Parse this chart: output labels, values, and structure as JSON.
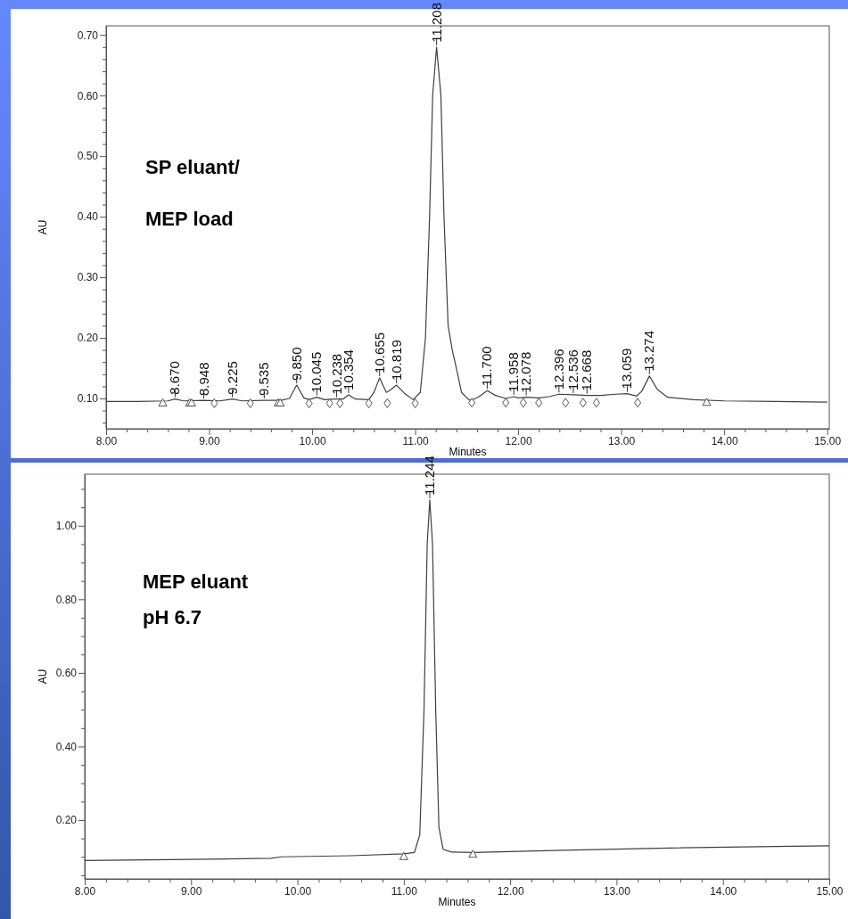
{
  "chart_data": [
    {
      "type": "line",
      "xlabel": "Minutes",
      "ylabel": "AU",
      "xlim": [
        8,
        15.02
      ],
      "ylim": [
        0.05,
        0.715
      ],
      "xticks": [
        {
          "value": 8,
          "label": "8.00"
        },
        {
          "value": 8.2,
          "label": null
        },
        {
          "value": 8.4,
          "label": null
        },
        {
          "value": 8.6,
          "label": null
        },
        {
          "value": 8.8,
          "label": null
        },
        {
          "value": 9,
          "label": "9.00"
        },
        {
          "value": 9.2,
          "label": null
        },
        {
          "value": 9.4,
          "label": null
        },
        {
          "value": 9.6,
          "label": null
        },
        {
          "value": 9.8,
          "label": null
        },
        {
          "value": 10,
          "label": "10.00"
        },
        {
          "value": 10.2,
          "label": null
        },
        {
          "value": 10.4,
          "label": null
        },
        {
          "value": 10.6,
          "label": null
        },
        {
          "value": 10.8,
          "label": null
        },
        {
          "value": 11,
          "label": "11.00"
        },
        {
          "value": 11.2,
          "label": null
        },
        {
          "value": 11.4,
          "label": null
        },
        {
          "value": 11.6,
          "label": null
        },
        {
          "value": 11.8,
          "label": null
        },
        {
          "value": 12,
          "label": "12.00"
        },
        {
          "value": 12.2,
          "label": null
        },
        {
          "value": 12.4,
          "label": null
        },
        {
          "value": 12.6,
          "label": null
        },
        {
          "value": 12.8,
          "label": null
        },
        {
          "value": 13,
          "label": "13.00"
        },
        {
          "value": 13.2,
          "label": null
        },
        {
          "value": 13.4,
          "label": null
        },
        {
          "value": 13.6,
          "label": null
        },
        {
          "value": 13.8,
          "label": null
        },
        {
          "value": 14,
          "label": "14.00"
        },
        {
          "value": 14.2,
          "label": null
        },
        {
          "value": 14.4,
          "label": null
        },
        {
          "value": 14.6,
          "label": null
        },
        {
          "value": 14.8,
          "label": null
        },
        {
          "value": 15,
          "label": "15.00"
        }
      ],
      "yticks": [
        {
          "value": 0.06,
          "label": null
        },
        {
          "value": 0.08,
          "label": null
        },
        {
          "value": 0.1,
          "label": "0.10"
        },
        {
          "value": 0.12,
          "label": null
        },
        {
          "value": 0.14,
          "label": null
        },
        {
          "value": 0.16,
          "label": null
        },
        {
          "value": 0.18,
          "label": null
        },
        {
          "value": 0.2,
          "label": "0.20"
        },
        {
          "value": 0.22,
          "label": null
        },
        {
          "value": 0.24,
          "label": null
        },
        {
          "value": 0.26,
          "label": null
        },
        {
          "value": 0.28,
          "label": null
        },
        {
          "value": 0.3,
          "label": "0.30"
        },
        {
          "value": 0.32,
          "label": null
        },
        {
          "value": 0.34,
          "label": null
        },
        {
          "value": 0.36,
          "label": null
        },
        {
          "value": 0.38,
          "label": null
        },
        {
          "value": 0.4,
          "label": "0.40"
        },
        {
          "value": 0.42,
          "label": null
        },
        {
          "value": 0.44,
          "label": null
        },
        {
          "value": 0.46,
          "label": null
        },
        {
          "value": 0.48,
          "label": null
        },
        {
          "value": 0.5,
          "label": "0.50"
        },
        {
          "value": 0.52,
          "label": null
        },
        {
          "value": 0.54,
          "label": null
        },
        {
          "value": 0.56,
          "label": null
        },
        {
          "value": 0.58,
          "label": null
        },
        {
          "value": 0.6,
          "label": "0.60"
        },
        {
          "value": 0.62,
          "label": null
        },
        {
          "value": 0.64,
          "label": null
        },
        {
          "value": 0.66,
          "label": null
        },
        {
          "value": 0.68,
          "label": null
        },
        {
          "value": 0.7,
          "label": "0.70"
        }
      ],
      "series": [
        {
          "type": "line",
          "color": "#404040",
          "marker": "none",
          "x": [
            8,
            8.3,
            8.6,
            8.67,
            8.75,
            8.95,
            9.1,
            9.225,
            9.32,
            9.535,
            9.7,
            9.78,
            9.85,
            9.92,
            9.97,
            10.045,
            10.12,
            10.238,
            10.3,
            10.354,
            10.42,
            10.55,
            10.6,
            10.655,
            10.72,
            10.76,
            10.819,
            10.9,
            10.98,
            11.05,
            11.1,
            11.14,
            11.17,
            11.208,
            11.25,
            11.28,
            11.32,
            11.36,
            11.4,
            11.45,
            11.52,
            11.55,
            11.62,
            11.7,
            11.78,
            11.88,
            11.958,
            12,
            12.078,
            12.2,
            12.3,
            12.396,
            12.536,
            12.668,
            12.8,
            12.95,
            13.059,
            13.15,
            13.2,
            13.274,
            13.35,
            13.45,
            13.7,
            14,
            14.5,
            15
          ],
          "values": [
            0.095,
            0.095,
            0.096,
            0.099,
            0.096,
            0.097,
            0.096,
            0.099,
            0.096,
            0.097,
            0.097,
            0.1,
            0.122,
            0.101,
            0.098,
            0.102,
            0.098,
            0.099,
            0.099,
            0.106,
            0.099,
            0.098,
            0.11,
            0.134,
            0.11,
            0.114,
            0.122,
            0.108,
            0.098,
            0.11,
            0.2,
            0.4,
            0.6,
            0.68,
            0.6,
            0.4,
            0.22,
            0.18,
            0.15,
            0.11,
            0.098,
            0.097,
            0.103,
            0.113,
            0.105,
            0.1,
            0.103,
            0.101,
            0.102,
            0.101,
            0.103,
            0.107,
            0.106,
            0.105,
            0.105,
            0.107,
            0.108,
            0.104,
            0.112,
            0.137,
            0.115,
            0.102,
            0.098,
            0.096,
            0.095,
            0.094
          ]
        },
        {
          "type": "scatter",
          "color": "#404040",
          "marker": "triangle",
          "x": [
            8.55,
            8.81,
            8.83,
            9.67,
            9.69,
            13.83
          ],
          "values": [
            0.092,
            0.092,
            0.092,
            0.092,
            0.092,
            0.093
          ]
        },
        {
          "type": "scatter",
          "color": "#404040",
          "marker": "diamond",
          "x": [
            9.05,
            9.4,
            9.97,
            10.17,
            10.27,
            10.55,
            10.73,
            11,
            11.55,
            11.88,
            12.05,
            12.2,
            12.46,
            12.63,
            12.76,
            13.16
          ],
          "values": [
            0.092,
            0.092,
            0.092,
            0.092,
            0.092,
            0.092,
            0.092,
            0.092,
            0.093,
            0.093,
            0.093,
            0.093,
            0.093,
            0.093,
            0.093,
            0.093
          ]
        }
      ],
      "annotations": [
        "SP eluant/",
        "MEP load",
        {
          "text": "8.670",
          "x": 8.67,
          "y": 0.099
        },
        {
          "text": "8.948",
          "x": 8.948,
          "y": 0.097
        },
        {
          "text": "9.225",
          "x": 9.225,
          "y": 0.099
        },
        {
          "text": "9.535",
          "x": 9.535,
          "y": 0.097
        },
        {
          "text": "9.850",
          "x": 9.85,
          "y": 0.122
        },
        {
          "text": "10.045",
          "x": 10.045,
          "y": 0.102
        },
        {
          "text": "10.238",
          "x": 10.238,
          "y": 0.099
        },
        {
          "text": "10.354",
          "x": 10.354,
          "y": 0.106
        },
        {
          "text": "10.655",
          "x": 10.655,
          "y": 0.134
        },
        {
          "text": "10.819",
          "x": 10.819,
          "y": 0.122
        },
        {
          "text": "11.208",
          "x": 11.208,
          "y": 0.68
        },
        {
          "text": "11.700",
          "x": 11.7,
          "y": 0.113
        },
        {
          "text": "11.958",
          "x": 11.958,
          "y": 0.103
        },
        {
          "text": "12.078",
          "x": 12.078,
          "y": 0.102
        },
        {
          "text": "12.396",
          "x": 12.396,
          "y": 0.107
        },
        {
          "text": "12.536",
          "x": 12.536,
          "y": 0.106
        },
        {
          "text": "12.668",
          "x": 12.668,
          "y": 0.105
        },
        {
          "text": "13.059",
          "x": 13.059,
          "y": 0.108
        },
        {
          "text": "13.274",
          "x": 13.274,
          "y": 0.137
        }
      ]
    },
    {
      "type": "line",
      "xlabel": "Minutes",
      "ylabel": "AU",
      "xlim": [
        8,
        15
      ],
      "ylim": [
        0.04,
        1.14
      ],
      "xticks": [
        {
          "value": 8,
          "label": "8.00"
        },
        {
          "value": 8.2,
          "label": null
        },
        {
          "value": 8.4,
          "label": null
        },
        {
          "value": 8.6,
          "label": null
        },
        {
          "value": 8.8,
          "label": null
        },
        {
          "value": 9,
          "label": "9.00"
        },
        {
          "value": 9.2,
          "label": null
        },
        {
          "value": 9.4,
          "label": null
        },
        {
          "value": 9.6,
          "label": null
        },
        {
          "value": 9.8,
          "label": null
        },
        {
          "value": 10,
          "label": "10.00"
        },
        {
          "value": 10.2,
          "label": null
        },
        {
          "value": 10.4,
          "label": null
        },
        {
          "value": 10.6,
          "label": null
        },
        {
          "value": 10.8,
          "label": null
        },
        {
          "value": 11,
          "label": "11.00"
        },
        {
          "value": 11.2,
          "label": null
        },
        {
          "value": 11.4,
          "label": null
        },
        {
          "value": 11.6,
          "label": null
        },
        {
          "value": 11.8,
          "label": null
        },
        {
          "value": 12,
          "label": "12.00"
        },
        {
          "value": 12.2,
          "label": null
        },
        {
          "value": 12.4,
          "label": null
        },
        {
          "value": 12.6,
          "label": null
        },
        {
          "value": 12.8,
          "label": null
        },
        {
          "value": 13,
          "label": "13.00"
        },
        {
          "value": 13.2,
          "label": null
        },
        {
          "value": 13.4,
          "label": null
        },
        {
          "value": 13.6,
          "label": null
        },
        {
          "value": 13.8,
          "label": null
        },
        {
          "value": 14,
          "label": "14.00"
        },
        {
          "value": 14.2,
          "label": null
        },
        {
          "value": 14.4,
          "label": null
        },
        {
          "value": 14.6,
          "label": null
        },
        {
          "value": 14.8,
          "label": null
        },
        {
          "value": 15,
          "label": "15.00"
        }
      ],
      "yticks": [
        {
          "value": 0.05,
          "label": null
        },
        {
          "value": 0.1,
          "label": null
        },
        {
          "value": 0.15,
          "label": null
        },
        {
          "value": 0.2,
          "label": "0.20"
        },
        {
          "value": 0.25,
          "label": null
        },
        {
          "value": 0.3,
          "label": null
        },
        {
          "value": 0.35,
          "label": null
        },
        {
          "value": 0.4,
          "label": "0.40"
        },
        {
          "value": 0.45,
          "label": null
        },
        {
          "value": 0.5,
          "label": null
        },
        {
          "value": 0.55,
          "label": null
        },
        {
          "value": 0.6,
          "label": "0.60"
        },
        {
          "value": 0.65,
          "label": null
        },
        {
          "value": 0.7,
          "label": null
        },
        {
          "value": 0.75,
          "label": null
        },
        {
          "value": 0.8,
          "label": "0.80"
        },
        {
          "value": 0.85,
          "label": null
        },
        {
          "value": 0.9,
          "label": null
        },
        {
          "value": 0.95,
          "label": null
        },
        {
          "value": 1,
          "label": "1.00"
        },
        {
          "value": 1.05,
          "label": null
        },
        {
          "value": 1.1,
          "label": null
        }
      ],
      "series": [
        {
          "type": "line",
          "color": "#404040",
          "marker": "none",
          "x": [
            8,
            9,
            9.75,
            9.85,
            10.5,
            11,
            11.1,
            11.15,
            11.19,
            11.22,
            11.244,
            11.27,
            11.3,
            11.33,
            11.37,
            11.45,
            11.65,
            12.5,
            13.5,
            14.5,
            15
          ],
          "values": [
            0.09,
            0.093,
            0.096,
            0.1,
            0.103,
            0.108,
            0.112,
            0.16,
            0.5,
            0.95,
            1.07,
            0.95,
            0.5,
            0.18,
            0.12,
            0.113,
            0.112,
            0.118,
            0.124,
            0.128,
            0.13
          ]
        },
        {
          "type": "scatter",
          "color": "#404040",
          "marker": "triangle",
          "x": [
            11,
            11.65
          ],
          "values": [
            0.1,
            0.106
          ]
        }
      ],
      "annotations": [
        "MEP eluant",
        "pH 6.7",
        {
          "text": "11.244",
          "x": 11.244,
          "y": 1.07
        }
      ]
    }
  ]
}
